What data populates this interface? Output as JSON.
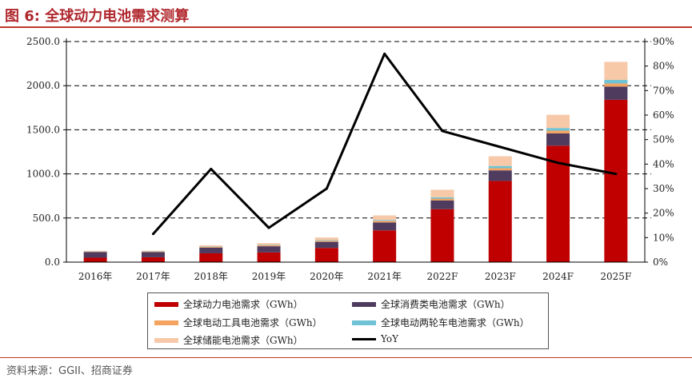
{
  "title": "图 6:  全球动力电池需求测算",
  "source": "资料来源：GGII、招商证券",
  "colors": {
    "power": "#c00000",
    "consumer": "#4f3b5e",
    "tool": "#f4a460",
    "twowheeler": "#6fc3d4",
    "storage": "#f7c9a8",
    "yoy": "#000000",
    "title": "#b0282e"
  },
  "chart_data": {
    "type": "bar",
    "stacked": true,
    "categories": [
      "2016年",
      "2017年",
      "2018年",
      "2019年",
      "2020年",
      "2021年",
      "2022F",
      "2023F",
      "2024F",
      "2025F"
    ],
    "series": [
      {
        "name": "全球动力电池需求（GWh）",
        "values": [
          50,
          55,
          100,
          110,
          160,
          360,
          600,
          920,
          1320,
          1840
        ]
      },
      {
        "name": "全球消费类电池需求（GWh）",
        "values": [
          65,
          60,
          65,
          70,
          70,
          90,
          100,
          120,
          140,
          150
        ]
      },
      {
        "name": "全球电动工具电池需求（GWh）",
        "values": [
          5,
          5,
          7,
          10,
          12,
          18,
          20,
          25,
          30,
          35
        ]
      },
      {
        "name": "全球电动两轮车电池需求（GWh）",
        "values": [
          3,
          3,
          4,
          5,
          7,
          10,
          15,
          25,
          30,
          40
        ]
      },
      {
        "name": "全球储能电池需求（GWh）",
        "values": [
          5,
          7,
          14,
          20,
          31,
          52,
          85,
          110,
          150,
          205
        ]
      }
    ],
    "line_series": {
      "name": "YoY",
      "axis": "right",
      "x": [
        "2017年",
        "2018年",
        "2019年",
        "2020年",
        "2021年",
        "2022F",
        "2023F",
        "2024F",
        "2025F"
      ],
      "values": [
        11.5,
        38,
        14,
        30,
        85,
        53.5,
        47,
        40.5,
        36
      ]
    },
    "y_left": {
      "ticks": [
        "2500.0",
        "2000.0",
        "1500.0",
        "1000.0",
        "500.0",
        "0.0"
      ],
      "range": [
        0,
        2500
      ]
    },
    "y_right": {
      "ticks": [
        "90%",
        "80%",
        "70%",
        "60%",
        "50%",
        "40%",
        "30%",
        "20%",
        "10%",
        "0%"
      ],
      "range": [
        0,
        90
      ]
    },
    "grid": "dashed horizontal",
    "legend_position": "bottom"
  }
}
